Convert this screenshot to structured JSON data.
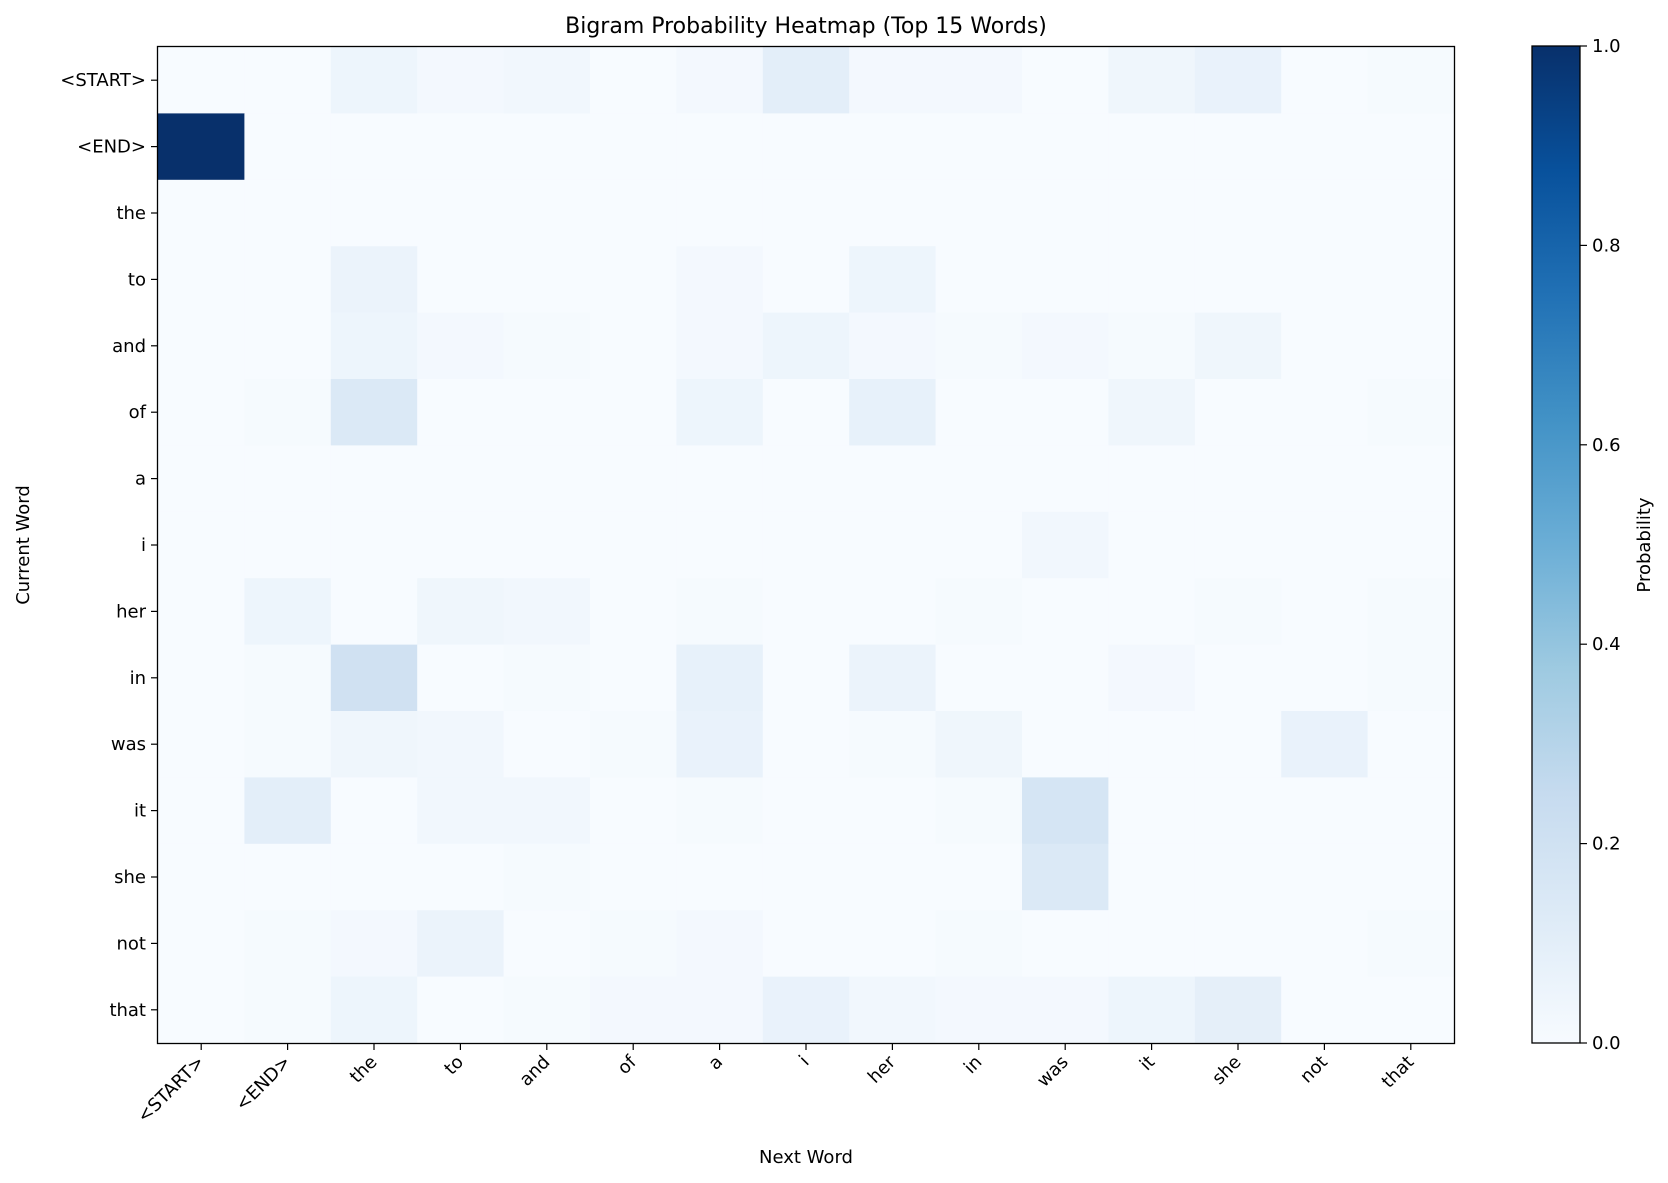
{
  "chart_data": {
    "type": "heatmap",
    "title": "Bigram Probability Heatmap (Top 15 Words)",
    "xlabel": "Next Word",
    "ylabel": "Current Word",
    "colorbar_label": "Probability",
    "colormap": "Blues",
    "vmin": 0.0,
    "vmax": 1.0,
    "colorbar_ticks": [
      "0.0",
      "0.2",
      "0.4",
      "0.6",
      "0.8",
      "1.0"
    ],
    "x_categories": [
      "<START>",
      "<END>",
      "the",
      "to",
      "and",
      "of",
      "a",
      "i",
      "her",
      "in",
      "was",
      "it",
      "she",
      "not",
      "that"
    ],
    "y_categories": [
      "<START>",
      "<END>",
      "the",
      "to",
      "and",
      "of",
      "a",
      "i",
      "her",
      "in",
      "was",
      "it",
      "she",
      "not",
      "that"
    ],
    "values": [
      [
        0.0,
        0.0,
        0.05,
        0.02,
        0.03,
        0.0,
        0.02,
        0.1,
        0.02,
        0.02,
        0.0,
        0.04,
        0.07,
        0.0,
        0.01
      ],
      [
        1.0,
        0.0,
        0.0,
        0.0,
        0.0,
        0.0,
        0.0,
        0.0,
        0.0,
        0.0,
        0.0,
        0.0,
        0.0,
        0.0,
        0.0
      ],
      [
        0.0,
        0.0,
        0.0,
        0.0,
        0.0,
        0.0,
        0.0,
        0.0,
        0.0,
        0.0,
        0.0,
        0.0,
        0.0,
        0.0,
        0.0
      ],
      [
        0.0,
        0.0,
        0.06,
        0.0,
        0.0,
        0.0,
        0.02,
        0.0,
        0.05,
        0.0,
        0.0,
        0.0,
        0.0,
        0.0,
        0.0
      ],
      [
        0.0,
        0.0,
        0.05,
        0.02,
        0.01,
        0.0,
        0.02,
        0.05,
        0.02,
        0.01,
        0.02,
        0.01,
        0.04,
        0.0,
        0.0
      ],
      [
        0.0,
        0.01,
        0.14,
        0.0,
        0.0,
        0.0,
        0.05,
        0.0,
        0.08,
        0.0,
        0.0,
        0.04,
        0.0,
        0.0,
        0.01
      ],
      [
        0.0,
        0.0,
        0.0,
        0.0,
        0.0,
        0.0,
        0.0,
        0.0,
        0.0,
        0.0,
        0.0,
        0.0,
        0.0,
        0.0,
        0.0
      ],
      [
        0.0,
        0.0,
        0.0,
        0.0,
        0.0,
        0.0,
        0.0,
        0.0,
        0.0,
        0.0,
        0.03,
        0.0,
        0.0,
        0.0,
        0.0
      ],
      [
        0.0,
        0.05,
        0.0,
        0.04,
        0.03,
        0.0,
        0.01,
        0.0,
        0.0,
        0.01,
        0.0,
        0.0,
        0.01,
        0.0,
        0.01
      ],
      [
        0.0,
        0.01,
        0.2,
        0.0,
        0.01,
        0.0,
        0.08,
        0.0,
        0.06,
        0.0,
        0.0,
        0.02,
        0.0,
        0.0,
        0.01
      ],
      [
        0.0,
        0.01,
        0.04,
        0.03,
        0.0,
        0.01,
        0.07,
        0.0,
        0.01,
        0.04,
        0.0,
        0.0,
        0.0,
        0.07,
        0.0
      ],
      [
        0.0,
        0.1,
        0.0,
        0.03,
        0.03,
        0.0,
        0.01,
        0.0,
        0.0,
        0.01,
        0.17,
        0.0,
        0.0,
        0.0,
        0.0
      ],
      [
        0.0,
        0.0,
        0.0,
        0.0,
        0.01,
        0.0,
        0.0,
        0.0,
        0.0,
        0.0,
        0.14,
        0.0,
        0.0,
        0.0,
        0.0
      ],
      [
        0.0,
        0.01,
        0.02,
        0.06,
        0.0,
        0.01,
        0.02,
        0.0,
        0.0,
        0.01,
        0.0,
        0.0,
        0.0,
        0.0,
        0.01
      ],
      [
        0.0,
        0.01,
        0.05,
        0.0,
        0.01,
        0.02,
        0.02,
        0.07,
        0.03,
        0.02,
        0.02,
        0.05,
        0.09,
        0.0,
        0.0
      ]
    ]
  }
}
